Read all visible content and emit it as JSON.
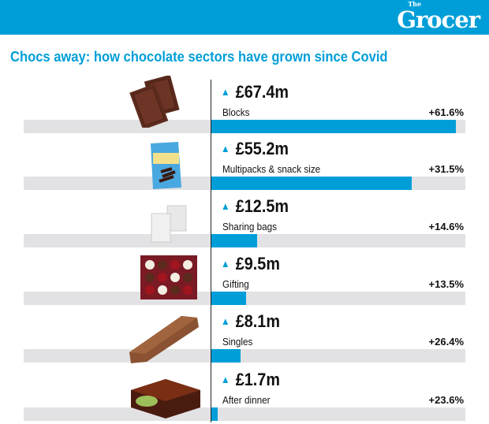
{
  "header": {
    "logo": "The Grocer",
    "logo_small": "The",
    "logo_main": "Grocer"
  },
  "title": "Chocs away: how chocolate sectors have grown since Covid",
  "colors": {
    "accent": "#009ed8",
    "track": "#e2e2e4"
  },
  "chart_data": {
    "type": "bar",
    "title": "Chocs away: how chocolate sectors have grown since Covid",
    "categories": [
      "Blocks",
      "Multipacks & snack size",
      "Sharing bags",
      "Gifting",
      "Singles",
      "After dinner"
    ],
    "values": [
      67.4,
      55.2,
      12.5,
      9.5,
      8.1,
      1.7
    ],
    "value_labels": [
      "£67.4m",
      "£55.2m",
      "£12.5m",
      "£9.5m",
      "£8.1m",
      "£1.7m"
    ],
    "growth_labels": [
      "+61.6%",
      "+31.5%",
      "+14.6%",
      "+13.5%",
      "+26.4%",
      "+23.6%"
    ],
    "icons": [
      "chocolate-block-icon",
      "multipack-bag-icon",
      "sharing-bags-icon",
      "gift-box-icon",
      "chocolate-bar-icon",
      "after-dinner-mint-icon"
    ]
  }
}
